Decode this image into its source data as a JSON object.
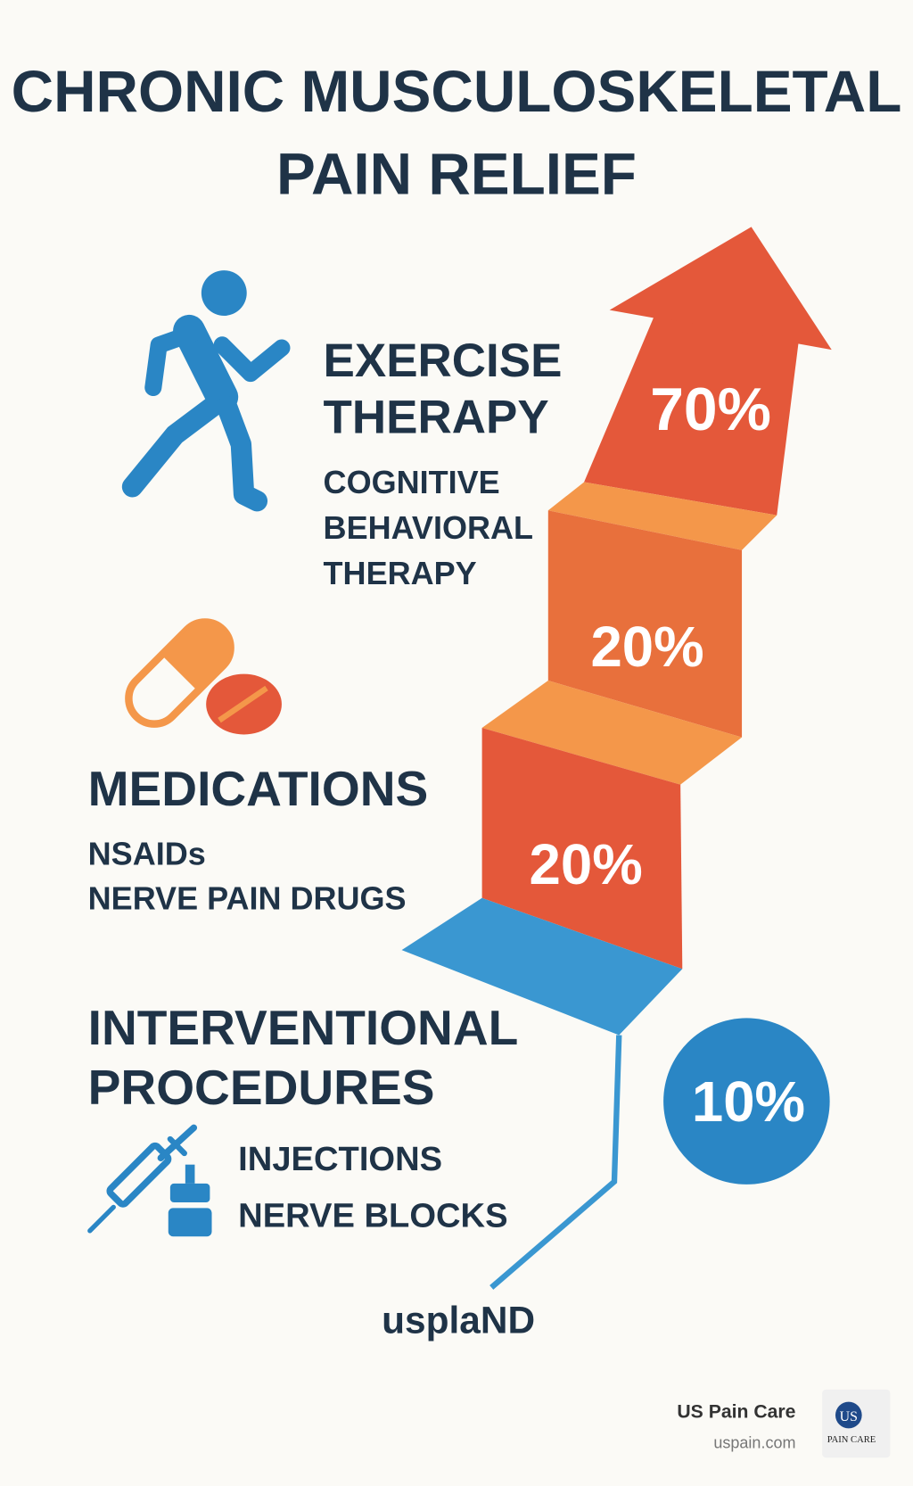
{
  "title": [
    "CHRONIC MUSCULOSKELETAL",
    "PAIN RELIEF"
  ],
  "sections": [
    {
      "heading": [
        "EXERCISE",
        "THERAPY"
      ],
      "items": [
        "COGNITIVE",
        "BEHAVIORAL",
        "THERAPY"
      ]
    },
    {
      "heading": [
        "MEDICATIONS"
      ],
      "items": [
        "NSAIDs",
        "NERVE PAIN DRUGS"
      ]
    },
    {
      "heading": [
        "INTERVENTIONAL",
        "PROCEDURES"
      ],
      "items": [
        "INJECTIONS",
        "NERVE BLOCKS"
      ]
    }
  ],
  "steps": [
    "70%",
    "20%",
    "20%",
    "10%"
  ],
  "brand": "usplaND",
  "footer": {
    "name": "US Pain Care",
    "url": "uspain.com",
    "logo": {
      "initials": "US",
      "text": "PAIN CARE"
    }
  }
}
